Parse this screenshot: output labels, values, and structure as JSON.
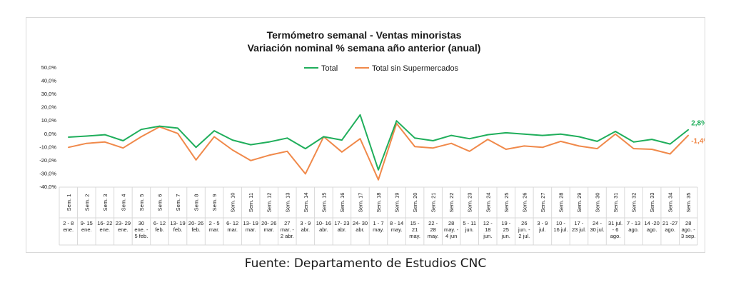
{
  "colors": {
    "total": "#1fae5b",
    "sin_super": "#f0894a",
    "grid": "#d9d9d9"
  },
  "source": "Fuente: Departamento de Estudios CNC",
  "chart_data": {
    "type": "line",
    "title": "Termómetro semanal - Ventas minoristas",
    "subtitle": "Variación nominal % semana año anterior (anual)",
    "ylim": [
      -40,
      50
    ],
    "yticks": [
      "50,0%",
      "40,0%",
      "30,0%",
      "20,0%",
      "10,0%",
      "0,0%",
      "-10,0%",
      "-20,0%",
      "-30,0%",
      "-40,0%"
    ],
    "legend_position": "top-center",
    "weeks": [
      "Sem. 1",
      "Sem. 2",
      "Sem. 3",
      "Sem. 4",
      "Sem. 5",
      "Sem. 6",
      "Sem. 7",
      "Sem. 8",
      "Sem. 9",
      "Sem. 10",
      "Sem. 11",
      "Sem. 12",
      "Sem. 13",
      "Sem. 14",
      "Sem. 15",
      "Sem. 16",
      "Sem. 17",
      "Sem. 18",
      "Sem. 19",
      "Sem. 20",
      "Sem. 21",
      "Sem. 22",
      "Sem. 23",
      "Sem. 24",
      "Sem. 25",
      "Sem. 26",
      "Sem. 27",
      "Sem. 28",
      "Sem. 29",
      "Sem. 30",
      "Sem. 31",
      "Sem. 32",
      "Sem. 33",
      "Sem. 34",
      "Sem. 35"
    ],
    "dates": [
      [
        "2 - 8",
        "ene."
      ],
      [
        "9- 15",
        "ene."
      ],
      [
        "16- 22",
        "ene."
      ],
      [
        "23- 29",
        "ene."
      ],
      [
        "30",
        "ene. -",
        "5 feb."
      ],
      [
        "6- 12",
        "feb."
      ],
      [
        "13- 19",
        "feb."
      ],
      [
        "20- 26",
        "feb."
      ],
      [
        "2 - 5",
        "mar."
      ],
      [
        "6- 12",
        "mar."
      ],
      [
        "13- 19",
        "mar."
      ],
      [
        "20- 26",
        "mar."
      ],
      [
        "27",
        "mar. -",
        "2 abr."
      ],
      [
        "3 - 9",
        "abr."
      ],
      [
        "10- 16",
        "abr."
      ],
      [
        "17- 23",
        "abr."
      ],
      [
        "24- 30",
        "abr."
      ],
      [
        "1 - 7",
        "may."
      ],
      [
        "8 - 14",
        "may."
      ],
      [
        "15 -",
        "21",
        "may."
      ],
      [
        "22 -",
        "28",
        "may."
      ],
      [
        "28",
        "may. -",
        "4 jun"
      ],
      [
        "5 - 11",
        "jun."
      ],
      [
        "12 -",
        "18",
        "jun."
      ],
      [
        "19 -",
        "25",
        "jun."
      ],
      [
        "26",
        "jun. -",
        "2 jul."
      ],
      [
        "3 - 9",
        "jul."
      ],
      [
        "10 -",
        "16 jul."
      ],
      [
        "17 -",
        "23 jul."
      ],
      [
        "24 -",
        "30 jul."
      ],
      [
        "31 jul.",
        "- 6",
        "ago."
      ],
      [
        "7 - 13",
        "ago."
      ],
      [
        "14 -20",
        "ago."
      ],
      [
        "21 -27",
        "ago."
      ],
      [
        "28",
        "ago. -",
        "3 sep."
      ]
    ],
    "series": [
      {
        "name": "Total",
        "color_key": "total",
        "end_label": "2,8%",
        "values": [
          -2.8,
          -2,
          -1,
          -5.5,
          3,
          5.5,
          4,
          -10.5,
          2,
          -5,
          -8.5,
          -6.5,
          -3.5,
          -11.5,
          -2.5,
          -5,
          14,
          -27.5,
          9.5,
          -3.5,
          -5.5,
          -1.5,
          -4,
          -1,
          0.5,
          -0.5,
          -1.5,
          -0.5,
          -2.5,
          -6,
          1.5,
          -6.5,
          -4.5,
          -8,
          2.8
        ]
      },
      {
        "name": "Total sin Supermercados",
        "color_key": "sin_super",
        "end_label": "-1,4%",
        "values": [
          -10.5,
          -7.5,
          -6.5,
          -11,
          -2.5,
          5,
          0,
          -20,
          -2.5,
          -12.5,
          -20.5,
          -16.5,
          -13.5,
          -30.5,
          -2.5,
          -14,
          -4,
          -35,
          7.5,
          -10,
          -11,
          -7.5,
          -13.5,
          -4.5,
          -12,
          -9.5,
          -10.5,
          -6,
          -9.5,
          -11.5,
          -0.5,
          -11.5,
          -12,
          -15.5,
          -1.4
        ]
      }
    ]
  }
}
